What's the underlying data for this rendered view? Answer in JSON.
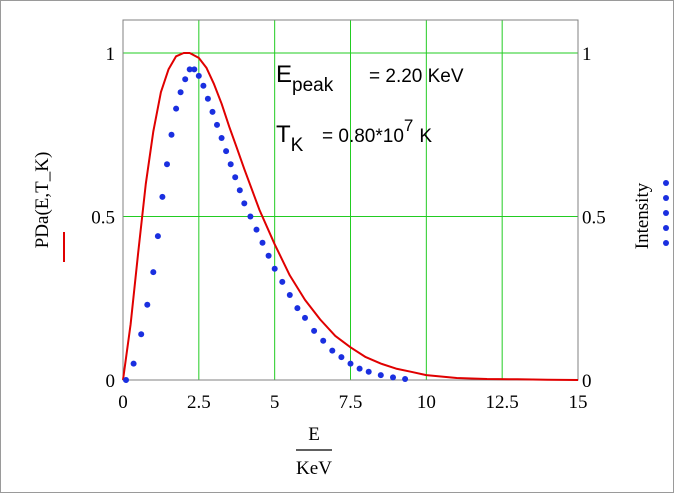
{
  "chart_data": {
    "type": "line",
    "x_ticks": [
      "0",
      "2.5",
      "5",
      "7.5",
      "10",
      "12.5",
      "15"
    ],
    "y_left_ticks": [
      "0",
      "0.5",
      "1"
    ],
    "y_right_ticks": [
      "0",
      "0.5",
      "1"
    ],
    "xlim": [
      0,
      15
    ],
    "ylim": [
      0,
      1.05
    ],
    "grid": true,
    "xlabel": {
      "numerator": "E",
      "denominator": "KeV"
    },
    "ylabel_left": "PDa(E,T_K)",
    "ylabel_right": "Intensity",
    "annotations": {
      "epeak_main": "E",
      "epeak_sub": "peak",
      "epeak_value": "= 2.20 KeV",
      "tk_main": "T",
      "tk_sub": "K",
      "tk_value": "= 0.80*10",
      "tk_exp": "7",
      "tk_unit": "K"
    },
    "series": [
      {
        "name": "PDa(E,T_K)",
        "style": "line",
        "color": "#e00000",
        "x": [
          0,
          0.25,
          0.5,
          0.75,
          1.0,
          1.25,
          1.5,
          1.75,
          2.0,
          2.2,
          2.5,
          2.75,
          3.0,
          3.25,
          3.5,
          3.75,
          4.0,
          4.5,
          5.0,
          5.5,
          6.0,
          6.5,
          7.0,
          7.5,
          8.0,
          8.5,
          9.0,
          9.5,
          10.0,
          11.0,
          12.0,
          13.0,
          14.0,
          15.0
        ],
        "y": [
          0,
          0.17,
          0.39,
          0.6,
          0.76,
          0.88,
          0.95,
          0.99,
          1.0,
          1.0,
          0.985,
          0.955,
          0.905,
          0.845,
          0.775,
          0.71,
          0.645,
          0.52,
          0.415,
          0.32,
          0.245,
          0.185,
          0.135,
          0.1,
          0.07,
          0.05,
          0.035,
          0.025,
          0.015,
          0.006,
          0.003,
          0.002,
          0.001,
          0.0
        ]
      },
      {
        "name": "Intensity",
        "style": "dots",
        "color": "#1a2fe0",
        "x": [
          0.1,
          0.35,
          0.6,
          0.8,
          1.0,
          1.15,
          1.3,
          1.45,
          1.6,
          1.75,
          1.9,
          2.05,
          2.2,
          2.35,
          2.5,
          2.65,
          2.8,
          2.95,
          3.1,
          3.25,
          3.4,
          3.55,
          3.7,
          3.85,
          4.0,
          4.2,
          4.4,
          4.6,
          4.8,
          5.0,
          5.25,
          5.5,
          5.75,
          6.0,
          6.3,
          6.6,
          6.9,
          7.2,
          7.5,
          7.8,
          8.1,
          8.5,
          8.9,
          9.3
        ],
        "y": [
          0.0,
          0.05,
          0.14,
          0.23,
          0.33,
          0.44,
          0.56,
          0.66,
          0.75,
          0.83,
          0.88,
          0.92,
          0.95,
          0.95,
          0.93,
          0.9,
          0.86,
          0.82,
          0.78,
          0.74,
          0.7,
          0.66,
          0.62,
          0.58,
          0.54,
          0.5,
          0.46,
          0.42,
          0.38,
          0.34,
          0.3,
          0.26,
          0.22,
          0.19,
          0.15,
          0.12,
          0.09,
          0.07,
          0.05,
          0.035,
          0.025,
          0.015,
          0.008,
          0.003
        ]
      }
    ]
  },
  "legend_colors": {
    "line": "#e00000",
    "dots": "#1a2fe0"
  }
}
